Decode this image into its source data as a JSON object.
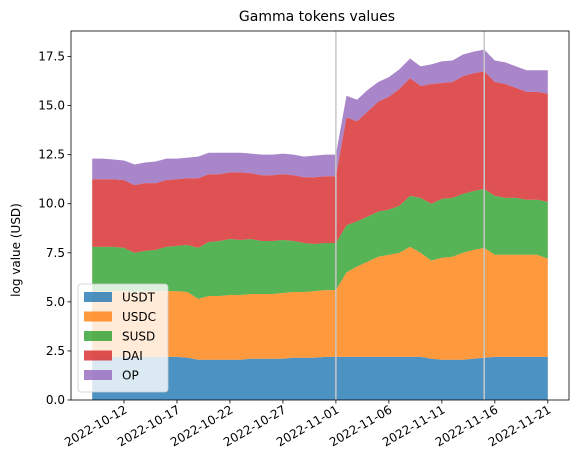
{
  "chart_data": {
    "type": "area",
    "stacked": true,
    "title": "Gamma tokens values",
    "xlabel": "",
    "ylabel": "log value (USD)",
    "x_start": "2022-10-09",
    "x": [
      "2022-10-09",
      "2022-10-10",
      "2022-10-11",
      "2022-10-12",
      "2022-10-13",
      "2022-10-14",
      "2022-10-15",
      "2022-10-16",
      "2022-10-17",
      "2022-10-18",
      "2022-10-19",
      "2022-10-20",
      "2022-10-21",
      "2022-10-22",
      "2022-10-23",
      "2022-10-24",
      "2022-10-25",
      "2022-10-26",
      "2022-10-27",
      "2022-10-28",
      "2022-10-29",
      "2022-10-30",
      "2022-10-31",
      "2022-11-01",
      "2022-11-02",
      "2022-11-03",
      "2022-11-04",
      "2022-11-05",
      "2022-11-06",
      "2022-11-07",
      "2022-11-08",
      "2022-11-09",
      "2022-11-10",
      "2022-11-11",
      "2022-11-12",
      "2022-11-13",
      "2022-11-14",
      "2022-11-15",
      "2022-11-16",
      "2022-11-17",
      "2022-11-18",
      "2022-11-19",
      "2022-11-20",
      "2022-11-21"
    ],
    "series": [
      {
        "name": "USDT",
        "color": "#1f77b4",
        "values": [
          2.2,
          2.2,
          2.2,
          2.2,
          2.2,
          2.2,
          2.2,
          2.2,
          2.2,
          2.15,
          2.05,
          2.05,
          2.05,
          2.05,
          2.05,
          2.1,
          2.1,
          2.1,
          2.1,
          2.15,
          2.15,
          2.15,
          2.2,
          2.2,
          2.2,
          2.2,
          2.2,
          2.2,
          2.2,
          2.2,
          2.2,
          2.2,
          2.1,
          2.05,
          2.05,
          2.05,
          2.1,
          2.15,
          2.2,
          2.2,
          2.2,
          2.2,
          2.2,
          2.2
        ]
      },
      {
        "name": "USDC",
        "color": "#ff7f0e",
        "values": [
          3.35,
          3.35,
          3.35,
          3.35,
          3.3,
          3.35,
          3.35,
          3.35,
          3.35,
          3.35,
          3.1,
          3.25,
          3.25,
          3.3,
          3.3,
          3.3,
          3.3,
          3.3,
          3.35,
          3.35,
          3.35,
          3.4,
          3.4,
          3.4,
          4.3,
          4.6,
          4.85,
          5.1,
          5.2,
          5.3,
          5.6,
          5.3,
          5.0,
          5.2,
          5.25,
          5.45,
          5.55,
          5.6,
          5.2,
          5.2,
          5.2,
          5.2,
          5.2,
          5.0
        ]
      },
      {
        "name": "SUSD",
        "color": "#2ca02c",
        "values": [
          2.25,
          2.25,
          2.25,
          2.2,
          2.0,
          2.05,
          2.1,
          2.25,
          2.3,
          2.4,
          2.6,
          2.75,
          2.8,
          2.85,
          2.8,
          2.8,
          2.7,
          2.7,
          2.7,
          2.6,
          2.5,
          2.4,
          2.4,
          2.4,
          2.4,
          2.3,
          2.3,
          2.3,
          2.3,
          2.4,
          2.6,
          2.8,
          2.9,
          3.0,
          3.0,
          3.0,
          3.0,
          3.0,
          3.0,
          2.9,
          2.9,
          2.8,
          2.8,
          2.9
        ]
      },
      {
        "name": "DAI",
        "color": "#d62728",
        "values": [
          3.45,
          3.45,
          3.45,
          3.45,
          3.45,
          3.45,
          3.4,
          3.4,
          3.4,
          3.4,
          3.55,
          3.45,
          3.4,
          3.4,
          3.45,
          3.35,
          3.35,
          3.35,
          3.35,
          3.35,
          3.35,
          3.4,
          3.4,
          3.4,
          5.5,
          5.1,
          5.35,
          5.6,
          5.75,
          5.95,
          6.0,
          5.7,
          6.1,
          5.9,
          5.9,
          6.0,
          6.0,
          6.0,
          5.8,
          5.8,
          5.6,
          5.5,
          5.5,
          5.5
        ]
      },
      {
        "name": "OP",
        "color": "#9467bd",
        "values": [
          1.05,
          1.05,
          1.0,
          1.0,
          1.05,
          1.05,
          1.1,
          1.1,
          1.05,
          1.05,
          1.1,
          1.1,
          1.1,
          1.0,
          1.0,
          1.0,
          1.05,
          1.05,
          1.05,
          1.05,
          1.05,
          1.1,
          1.1,
          1.1,
          1.1,
          1.1,
          1.1,
          1.0,
          1.0,
          1.0,
          1.0,
          1.0,
          1.0,
          1.1,
          1.1,
          1.1,
          1.1,
          1.1,
          1.1,
          1.1,
          1.1,
          1.1,
          1.1,
          1.2
        ]
      }
    ],
    "ylim": [
      0,
      18.8
    ],
    "xlim": [
      "2022-10-07",
      "2022-11-23"
    ],
    "yticks": [
      0.0,
      2.5,
      5.0,
      7.5,
      10.0,
      12.5,
      15.0,
      17.5
    ],
    "ytick_labels": [
      "0.0",
      "2.5",
      "5.0",
      "7.5",
      "10.0",
      "12.5",
      "15.0",
      "17.5"
    ],
    "xticks": [
      "2022-10-12",
      "2022-10-17",
      "2022-10-22",
      "2022-10-27",
      "2022-11-01",
      "2022-11-06",
      "2022-11-11",
      "2022-11-16",
      "2022-11-21"
    ],
    "xtick_labels": [
      "2022-10-12",
      "2022-10-17",
      "2022-10-22",
      "2022-10-27",
      "2022-11-01",
      "2022-11-06",
      "2022-11-11",
      "2022-11-16",
      "2022-11-21"
    ],
    "vlines": [
      "2022-11-01",
      "2022-11-15"
    ],
    "vline_color": "#c8c8c8",
    "grid": false,
    "legend_position": "lower-left"
  }
}
